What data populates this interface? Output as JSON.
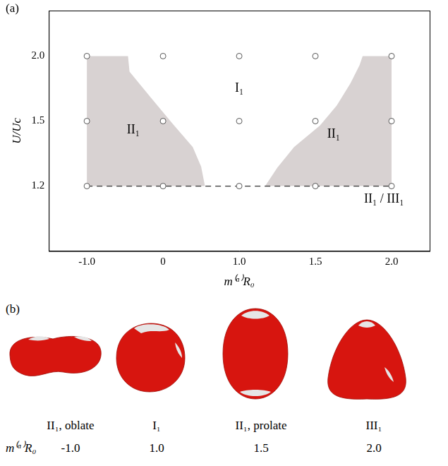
{
  "chart_data": {
    "type": "scatter",
    "panel_label": "(a)",
    "x_label": "m⁽ᵅ⁾R₀",
    "y_label": "U/Uc",
    "xticks": [
      {
        "value": -1,
        "label": "-1.0"
      },
      0,
      {
        "value": 1,
        "label": "1.0"
      },
      1.5,
      {
        "value": 2,
        "label": "2.0"
      }
    ],
    "xlim": [
      -1.5,
      2.25
    ],
    "yticks": [
      1.2,
      1.5,
      {
        "value": 2,
        "label": "2.0"
      }
    ],
    "ylim": [
      0.9,
      2.35
    ],
    "grid": false,
    "points": {
      "x": [
        -1,
        0,
        1,
        1.5,
        2,
        -1,
        0,
        1,
        1.5,
        2,
        -1,
        0,
        1,
        1.5,
        2
      ],
      "y": [
        2,
        2,
        2,
        2,
        2,
        1.5,
        1.5,
        1.5,
        1.5,
        1.5,
        1.2,
        1.2,
        1.2,
        1.2,
        1.2
      ],
      "marker": "open_circle",
      "color": "#555555"
    },
    "dashed_line": {
      "x": [
        -1,
        2
      ],
      "y": 1.2,
      "line_style": "dashed",
      "color": "#333333"
    },
    "regions": [
      {
        "color": "#d8d2d2",
        "boundary": [
          [
            -1,
            2
          ],
          [
            -0.46,
            2
          ],
          [
            -0.44,
            1.88
          ],
          [
            -0.16,
            1.68
          ],
          [
            0.12,
            1.49
          ],
          [
            0.39,
            1.38
          ],
          [
            0.5,
            1.29
          ],
          [
            0.55,
            1.2
          ],
          [
            -1,
            1.2
          ]
        ]
      },
      {
        "color": "#d8d2d2",
        "boundary": [
          [
            1.17,
            1.2
          ],
          [
            1.25,
            1.285
          ],
          [
            1.36,
            1.38
          ],
          [
            1.53,
            1.48
          ],
          [
            1.64,
            1.62
          ],
          [
            1.73,
            1.79
          ],
          [
            1.79,
            1.93
          ],
          [
            1.81,
            2
          ],
          [
            2,
            2
          ],
          [
            2,
            1.2
          ]
        ]
      }
    ],
    "annotations": [
      {
        "text": "I₁",
        "x": 1.0,
        "y": 1.75
      },
      {
        "text": "II₁",
        "x": -0.39,
        "y": 1.46
      },
      {
        "text": "II₁",
        "x": 1.62,
        "y": 1.44
      },
      {
        "text": "II₁ / III₁",
        "x": 1.95,
        "y": 1.14
      }
    ]
  },
  "panel_b": {
    "panel_label": "(b)",
    "row_label": "m⁽ᵅ⁾R₀",
    "color": "#d7150f",
    "shapes": [
      {
        "phase": "II₁, oblate",
        "m_R0": {
          "value": -1,
          "label": "-1.0"
        }
      },
      {
        "phase": "I₁",
        "m_R0": {
          "value": 1,
          "label": "1.0"
        }
      },
      {
        "phase": "II₁, prolate",
        "m_R0": 1.5
      },
      {
        "phase": "III₁",
        "m_R0": {
          "value": 2,
          "label": "2.0"
        }
      }
    ]
  }
}
